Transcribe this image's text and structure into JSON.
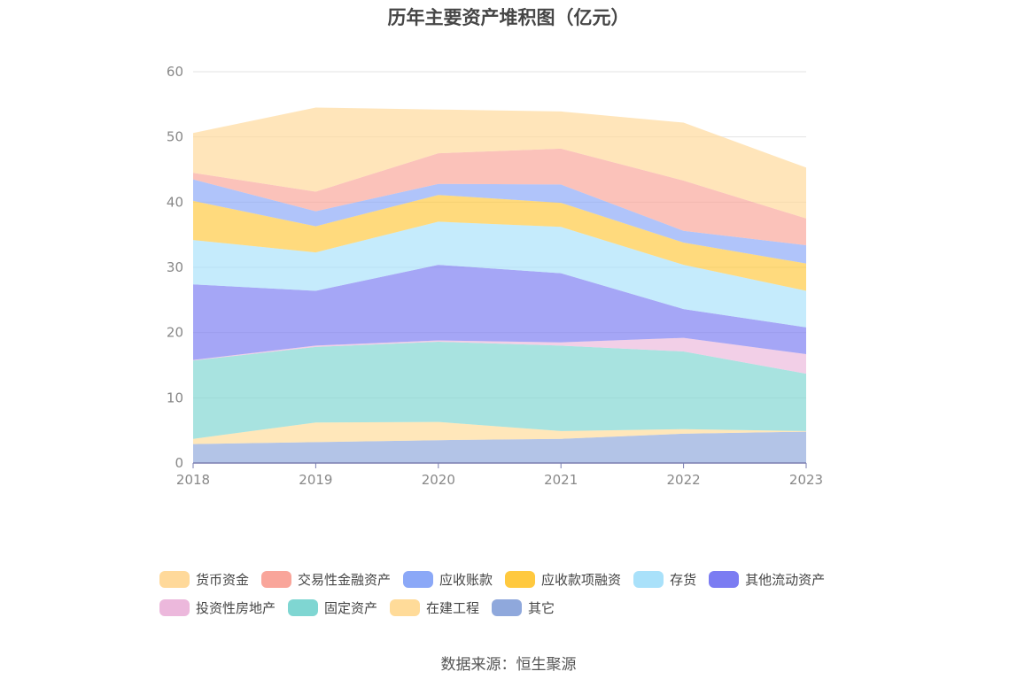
{
  "chart_data": {
    "type": "area",
    "stacked": true,
    "title": "历年主要资产堆积图（亿元）",
    "x": [
      "2018",
      "2019",
      "2020",
      "2021",
      "2022",
      "2023"
    ],
    "ylim": [
      0,
      60
    ],
    "yticks": [
      "0",
      "10",
      "20",
      "30",
      "40",
      "50",
      "60"
    ],
    "grid": true,
    "legend_position": "bottom",
    "series": [
      {
        "name": "其它",
        "color": "#8fa8dc",
        "values": [
          2.9,
          3.2,
          3.5,
          3.7,
          4.5,
          4.8
        ]
      },
      {
        "name": "在建工程",
        "color": "#ffdb99",
        "values": [
          0.8,
          3.0,
          2.8,
          1.2,
          0.7,
          0.1
        ]
      },
      {
        "name": "固定资产",
        "color": "#7fd6d2",
        "values": [
          12.0,
          11.6,
          12.3,
          13.1,
          11.9,
          8.8
        ]
      },
      {
        "name": "投资性房地产",
        "color": "#ecb8dc",
        "values": [
          0.1,
          0.2,
          0.2,
          0.5,
          2.1,
          3.0
        ]
      },
      {
        "name": "其他流动资产",
        "color": "#7b7cf2",
        "values": [
          11.6,
          8.4,
          11.6,
          10.6,
          4.4,
          4.1
        ]
      },
      {
        "name": "存货",
        "color": "#a9e1fa",
        "values": [
          6.8,
          5.9,
          6.6,
          7.1,
          6.8,
          5.6
        ]
      },
      {
        "name": "应收款项融资",
        "color": "#ffc93f",
        "values": [
          6.0,
          4.0,
          4.1,
          3.7,
          3.4,
          4.2
        ]
      },
      {
        "name": "应收账款",
        "color": "#8ba8f7",
        "values": [
          3.3,
          2.3,
          1.7,
          2.8,
          1.8,
          2.8
        ]
      },
      {
        "name": "交易性金融资产",
        "color": "#f9a59a",
        "values": [
          1.0,
          3.0,
          4.7,
          5.5,
          7.7,
          4.1
        ]
      },
      {
        "name": "货币资金",
        "color": "#ffd99a",
        "values": [
          6.1,
          12.9,
          6.7,
          5.7,
          8.9,
          7.8
        ]
      }
    ],
    "legend_order": [
      "货币资金",
      "交易性金融资产",
      "应收账款",
      "应收款项融资",
      "存货",
      "其他流动资产",
      "投资性房地产",
      "固定资产",
      "在建工程",
      "其它"
    ]
  },
  "source": "数据来源：恒生聚源"
}
